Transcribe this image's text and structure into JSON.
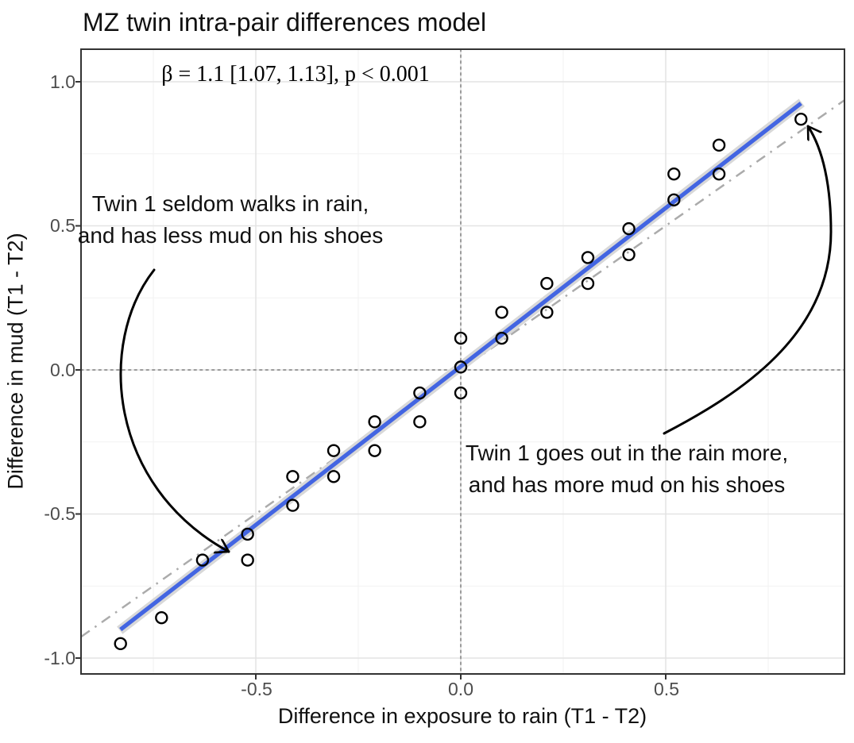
{
  "annotations": {
    "left": {
      "line1": "Twin 1 seldom walks in rain,",
      "line2": "and has less mud on his shoes"
    },
    "right": {
      "line1": "Twin 1 goes out in the rain more,",
      "line2": "and has more mud on his shoes"
    }
  },
  "chart_data": {
    "type": "scatter",
    "title": "MZ twin intra-pair differences model",
    "xlabel": "Difference in exposure to rain (T1 - T2)",
    "ylabel": "Difference in mud (T1 - T2)",
    "xlim": [
      -0.93,
      0.94
    ],
    "ylim": [
      -1.06,
      1.11
    ],
    "grid": true,
    "x_ticks": [
      -0.5,
      0.0,
      0.5
    ],
    "x_tick_labels": [
      "-0.5",
      "0.0",
      "0.5"
    ],
    "y_ticks": [
      1.0,
      0.5,
      0.0,
      -0.5,
      -1.0
    ],
    "y_tick_labels": [
      "1.0",
      "0.5",
      "0.0",
      "-0.5",
      "-1.0"
    ],
    "x_minor_ticks": [
      -0.75,
      -0.25,
      0.25,
      0.75
    ],
    "y_minor_ticks": [
      -0.75,
      -0.25,
      0.25,
      0.75
    ],
    "points": [
      [
        -0.83,
        -0.95
      ],
      [
        -0.73,
        -0.86
      ],
      [
        -0.63,
        -0.66
      ],
      [
        -0.52,
        -0.57
      ],
      [
        -0.52,
        -0.66
      ],
      [
        -0.41,
        -0.37
      ],
      [
        -0.41,
        -0.47
      ],
      [
        -0.31,
        -0.28
      ],
      [
        -0.31,
        -0.37
      ],
      [
        -0.21,
        -0.18
      ],
      [
        -0.21,
        -0.28
      ],
      [
        -0.1,
        -0.08
      ],
      [
        -0.1,
        -0.18
      ],
      [
        0.0,
        0.11
      ],
      [
        0.0,
        0.01
      ],
      [
        0.0,
        -0.08
      ],
      [
        0.1,
        0.2
      ],
      [
        0.1,
        0.11
      ],
      [
        0.21,
        0.3
      ],
      [
        0.21,
        0.2
      ],
      [
        0.31,
        0.39
      ],
      [
        0.31,
        0.3
      ],
      [
        0.41,
        0.49
      ],
      [
        0.41,
        0.4
      ],
      [
        0.52,
        0.68
      ],
      [
        0.52,
        0.59
      ],
      [
        0.63,
        0.78
      ],
      [
        0.63,
        0.68
      ],
      [
        0.83,
        0.87
      ]
    ],
    "fit_line": {
      "label": "β = 1.1 [1.07, 1.13], p < 0.001",
      "beta": 1.1,
      "ci": [
        1.07,
        1.13
      ],
      "p_value": "p < 0.001",
      "slope": 1.1,
      "intercept": 0,
      "x_range": [
        -0.83,
        0.83
      ]
    },
    "identity_line": {
      "slope": 1,
      "intercept": 0,
      "style": "dash-dot"
    },
    "zero_lines": {
      "x": 0,
      "y": 0,
      "style": "dotted"
    },
    "colors": {
      "fit_line": "#4365e2",
      "ci_band": "#d8d8d8",
      "identity_line": "#ababab",
      "zero_line": "#9b9b9b",
      "point_stroke": "#000000",
      "grid_major": "#e4e4e4",
      "grid_minor": "#f2f2f2",
      "panel_border": "#333333",
      "tick_mark": "#333333",
      "arrow": "#000000",
      "tick_label": "#4d4d4d",
      "text": "#111111"
    }
  }
}
